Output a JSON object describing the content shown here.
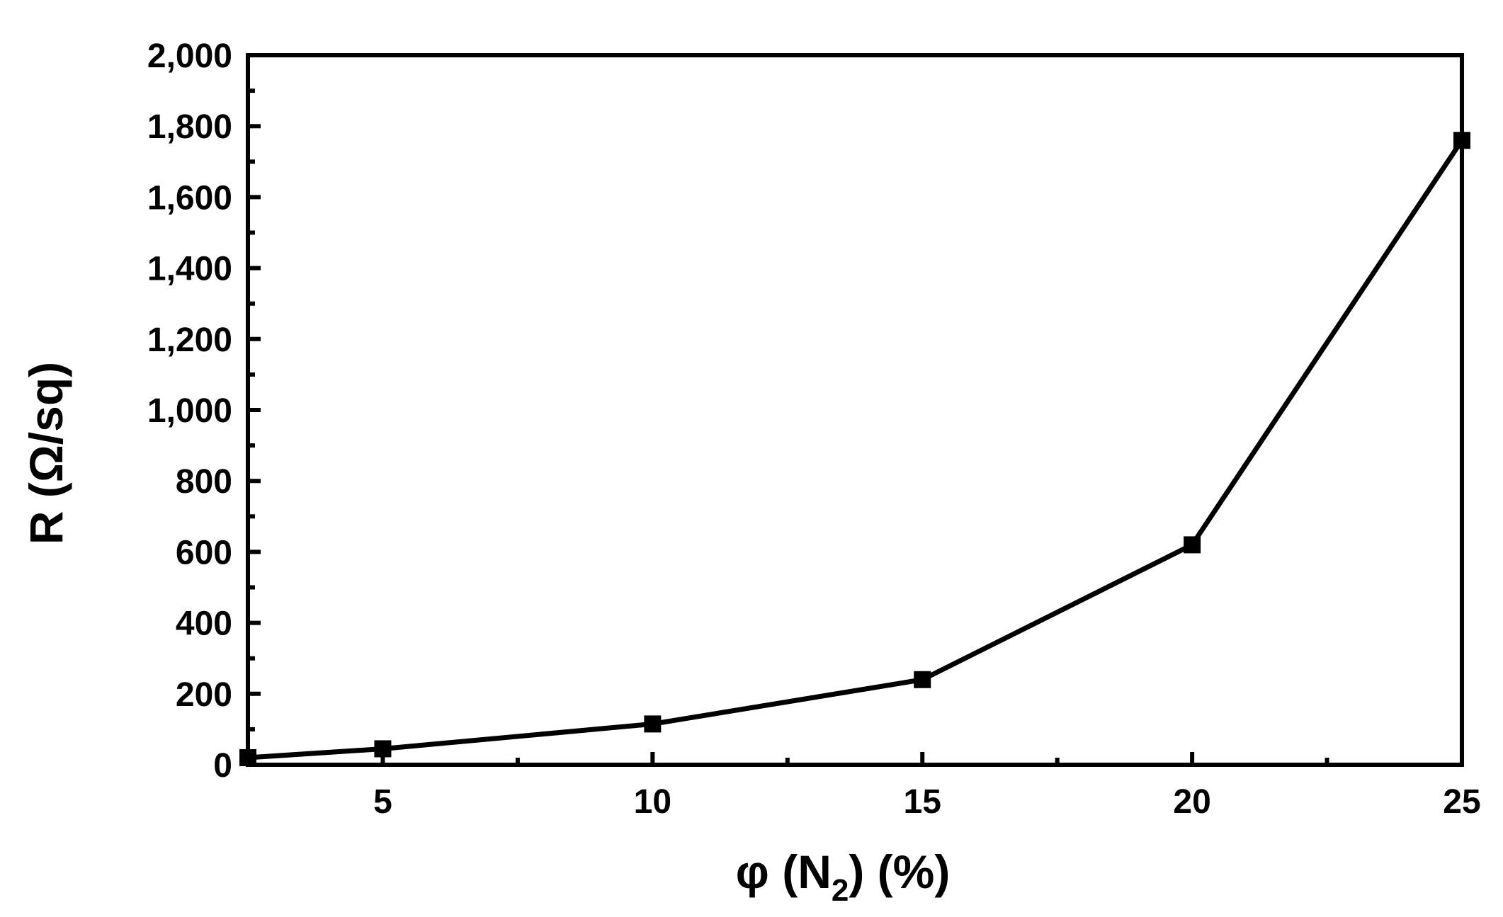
{
  "chart_data": {
    "type": "line",
    "x": [
      2.5,
      5,
      10,
      15,
      20,
      25
    ],
    "series": [
      {
        "values": [
          20,
          45,
          115,
          240,
          620,
          1760
        ]
      }
    ],
    "xlim": [
      2.5,
      25
    ],
    "ylim": [
      0,
      2000
    ],
    "x_ticks": [
      5,
      10,
      15,
      20,
      25
    ],
    "x_tick_labels": [
      "5",
      "10",
      "15",
      "20",
      "25"
    ],
    "x_minor_ticks": [
      7.5,
      12.5,
      17.5,
      22.5
    ],
    "y_ticks": [
      0,
      200,
      400,
      600,
      800,
      1000,
      1200,
      1400,
      1600,
      1800,
      2000
    ],
    "y_tick_labels": [
      "0",
      "200",
      "400",
      "600",
      "800",
      "1,000",
      "1,200",
      "1,400",
      "1,600",
      "1,800",
      "2,000"
    ],
    "y_minor_ticks": [
      100,
      300,
      500,
      700,
      900,
      1100,
      1300,
      1500,
      1700,
      1900
    ],
    "xlabel": {
      "main": "φ (N",
      "subscript": "2",
      "tail": ") (%)"
    },
    "ylabel": "R (Ω/sq)",
    "grid": false,
    "legend": "none",
    "marker": "square",
    "line_color": "#000000"
  }
}
